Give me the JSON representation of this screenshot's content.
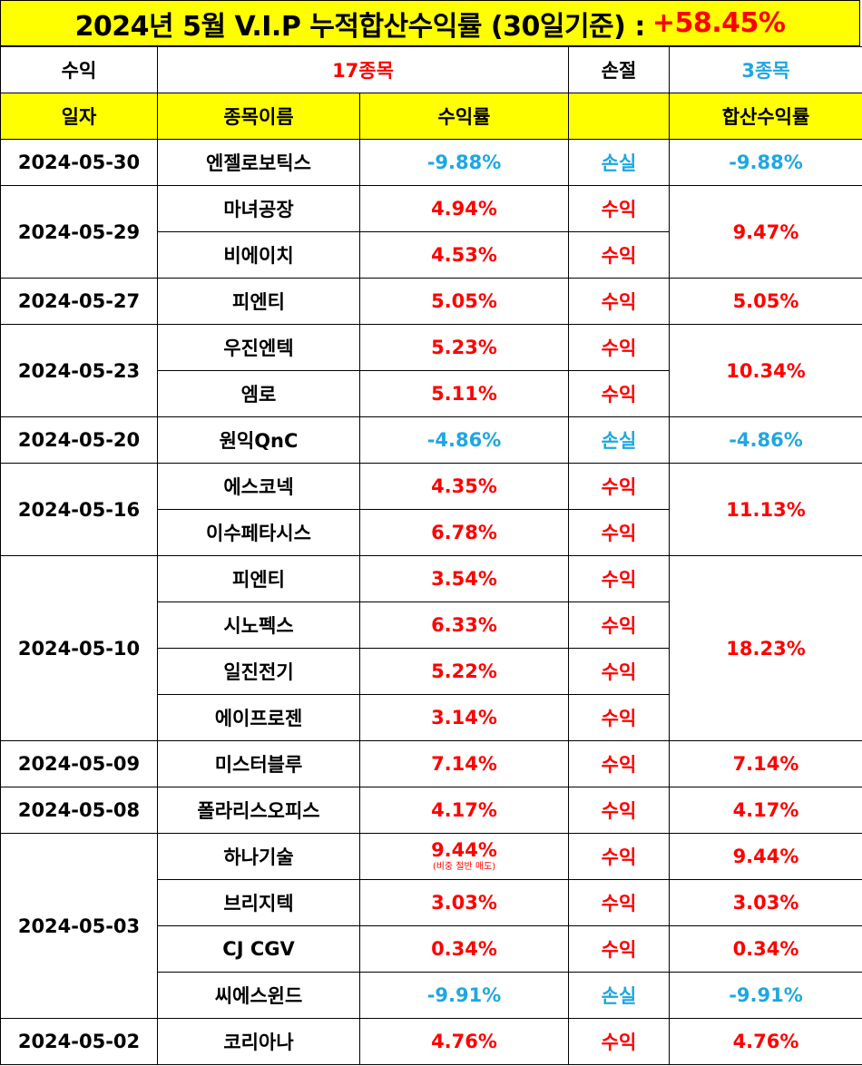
{
  "title": {
    "text": "2024년 5월 V.I.P 누적합산수익률 (30일기준) :",
    "total_return": "+58.45%"
  },
  "summary": {
    "profit_label": "수익",
    "profit_count": "17종목",
    "loss_label": "손절",
    "loss_count": "3종목"
  },
  "headers": {
    "date": "일자",
    "stock": "종목이름",
    "return": "수익률",
    "result": "",
    "combined": "합산수익률"
  },
  "colors": {
    "profit": "#ff0000",
    "loss": "#1ea7e1",
    "highlight": "#ffff00"
  },
  "groups": [
    {
      "date": "2024-05-30",
      "combined": "-9.88%",
      "combined_type": "loss",
      "items": [
        {
          "name": "엔젤로보틱스",
          "return": "-9.88%",
          "result": "손실",
          "type": "loss"
        }
      ]
    },
    {
      "date": "2024-05-29",
      "combined": "9.47%",
      "combined_type": "profit",
      "items": [
        {
          "name": "마녀공장",
          "return": "4.94%",
          "result": "수익",
          "type": "profit"
        },
        {
          "name": "비에이치",
          "return": "4.53%",
          "result": "수익",
          "type": "profit"
        }
      ]
    },
    {
      "date": "2024-05-27",
      "combined": "5.05%",
      "combined_type": "profit",
      "items": [
        {
          "name": "피엔티",
          "return": "5.05%",
          "result": "수익",
          "type": "profit"
        }
      ]
    },
    {
      "date": "2024-05-23",
      "combined": "10.34%",
      "combined_type": "profit",
      "items": [
        {
          "name": "우진엔텍",
          "return": "5.23%",
          "result": "수익",
          "type": "profit"
        },
        {
          "name": "엠로",
          "return": "5.11%",
          "result": "수익",
          "type": "profit"
        }
      ]
    },
    {
      "date": "2024-05-20",
      "combined": "-4.86%",
      "combined_type": "loss",
      "items": [
        {
          "name": "원익QnC",
          "return": "-4.86%",
          "result": "손실",
          "type": "loss"
        }
      ]
    },
    {
      "date": "2024-05-16",
      "combined": "11.13%",
      "combined_type": "profit",
      "items": [
        {
          "name": "에스코넥",
          "return": "4.35%",
          "result": "수익",
          "type": "profit"
        },
        {
          "name": "이수페타시스",
          "return": "6.78%",
          "result": "수익",
          "type": "profit"
        }
      ]
    },
    {
      "date": "2024-05-10",
      "combined": "18.23%",
      "combined_type": "profit",
      "items": [
        {
          "name": "피엔티",
          "return": "3.54%",
          "result": "수익",
          "type": "profit"
        },
        {
          "name": "시노펙스",
          "return": "6.33%",
          "result": "수익",
          "type": "profit"
        },
        {
          "name": "일진전기",
          "return": "5.22%",
          "result": "수익",
          "type": "profit"
        },
        {
          "name": "에이프로젠",
          "return": "3.14%",
          "result": "수익",
          "type": "profit"
        }
      ]
    },
    {
      "date": "2024-05-09",
      "combined": "7.14%",
      "combined_type": "profit",
      "items": [
        {
          "name": "미스터블루",
          "return": "7.14%",
          "result": "수익",
          "type": "profit"
        }
      ]
    },
    {
      "date": "2024-05-08",
      "combined": "4.17%",
      "combined_type": "profit",
      "items": [
        {
          "name": "폴라리스오피스",
          "return": "4.17%",
          "result": "수익",
          "type": "profit"
        }
      ]
    },
    {
      "date": "2024-05-03",
      "combined": null,
      "combined_type": "profit",
      "items": [
        {
          "name": "하나기술",
          "return": "9.44%",
          "note": "(비중 절반 매도)",
          "result": "수익",
          "type": "profit",
          "combined": "9.44%"
        },
        {
          "name": "브리지텍",
          "return": "3.03%",
          "result": "수익",
          "type": "profit",
          "combined": "3.03%"
        },
        {
          "name": "CJ CGV",
          "return": "0.34%",
          "result": "수익",
          "type": "profit",
          "combined": "0.34%"
        },
        {
          "name": "씨에스윈드",
          "return": "-9.91%",
          "result": "손실",
          "type": "loss",
          "combined": "-9.91%"
        }
      ]
    },
    {
      "date": "2024-05-02",
      "combined": "4.76%",
      "combined_type": "profit",
      "items": [
        {
          "name": "코리아나",
          "return": "4.76%",
          "result": "수익",
          "type": "profit"
        }
      ]
    }
  ]
}
